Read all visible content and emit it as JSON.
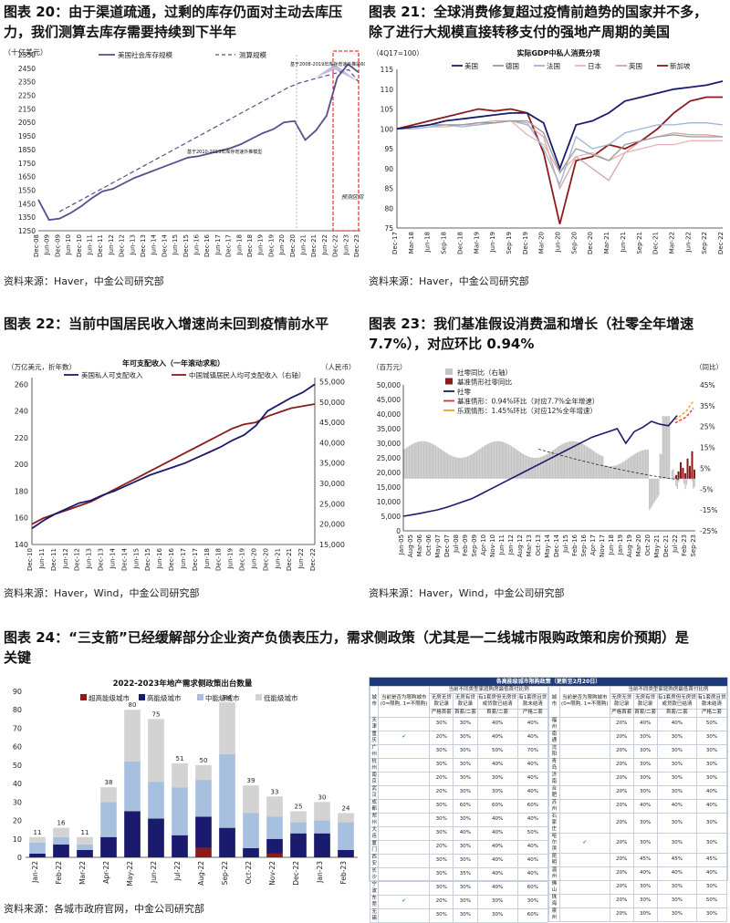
{
  "fig20": {
    "title_line1": "图表 20：由于渠道疏通，过剩的库存仍面对主动去库压",
    "title_line2": "力，我们测算去库存需要持续到下半年",
    "source": "资料来源：Haver，中金公司研究部",
    "chart_data": {
      "type": "line",
      "unit_label": "（十亿美元）",
      "y_ticks": [
        1250,
        1350,
        1450,
        1550,
        1650,
        1750,
        1850,
        1950,
        2050,
        2150,
        2250,
        2350,
        2450,
        2550
      ],
      "ylim": [
        1250,
        2550
      ],
      "x_ticks": [
        "Dec-08",
        "Jun-09",
        "Dec-09",
        "Jun-10",
        "Dec-10",
        "Jun-11",
        "Dec-11",
        "Jun-12",
        "Dec-12",
        "Jun-13",
        "Dec-13",
        "Jun-14",
        "Dec-14",
        "Jun-15",
        "Dec-15",
        "Jun-16",
        "Dec-16",
        "Jun-17",
        "Dec-17",
        "Jun-18",
        "Dec-18",
        "Jun-19",
        "Dec-19",
        "Jun-20",
        "Dec-20",
        "Jun-21",
        "Dec-21",
        "Jun-22",
        "Dec-22",
        "Jun-23",
        "Dec-23"
      ],
      "series": [
        {
          "name": "美国社会库存规模",
          "values": [
            1480,
            1330,
            1340,
            1380,
            1430,
            1490,
            1540,
            1560,
            1600,
            1640,
            1670,
            1700,
            1730,
            1760,
            1790,
            1800,
            1820,
            1840,
            1860,
            1890,
            1930,
            1970,
            2000,
            2050,
            2060,
            1920,
            1990,
            2100,
            2380,
            2480,
            2420
          ]
        },
        {
          "name": "测算规模",
          "values": [
            1390,
            1430,
            1470,
            1510,
            1550,
            1590,
            1630,
            1670,
            1710,
            1750,
            1790,
            1830,
            1870,
            1910,
            1950,
            1990,
            2030,
            2070,
            2110,
            2150,
            2190,
            2230,
            2270,
            2310,
            2340,
            2360,
            2380,
            2400,
            2420,
            2440,
            2350
          ]
        }
      ],
      "annotations": [
        "基于2008-2019年库存增速外推的60%库存增长",
        "基于2010-2019年库存增速外推模型",
        "预测区间"
      ]
    }
  },
  "fig21": {
    "title_line1": "图表 21：全球消费修复超过疫情前趋势的国家并不多，",
    "title_line2": "除了进行大规模直接转移支付的强地产周期的美国",
    "source": "资料来源：Haver，中金公司研究部",
    "chart_data": {
      "type": "line",
      "title": "实际GDP中私人消费分项",
      "unit_label": "（4Q17=100）",
      "y_ticks": [
        75,
        80,
        85,
        90,
        95,
        100,
        105,
        110,
        115
      ],
      "ylim": [
        75,
        115
      ],
      "x_ticks": [
        "Dec-17",
        "Mar-18",
        "Jun-18",
        "Sep-18",
        "Dec-18",
        "Mar-19",
        "Jun-19",
        "Sep-19",
        "Dec-19",
        "Mar-20",
        "Jun-20",
        "Sep-20",
        "Dec-20",
        "Mar-21",
        "Jun-21",
        "Sep-21",
        "Dec-21",
        "Mar-22",
        "Jun-22",
        "Sep-22",
        "Dec-22"
      ],
      "series": [
        {
          "name": "美国",
          "color": "#1a1a6e",
          "values": [
            100,
            100.5,
            101,
            102,
            102.5,
            103,
            103.5,
            104,
            104,
            101.5,
            90,
            101,
            102,
            104,
            107,
            108,
            109,
            110,
            110.5,
            111,
            112
          ]
        },
        {
          "name": "德国",
          "color": "#9a9a9a",
          "values": [
            100,
            100.5,
            101,
            101,
            101,
            101.5,
            101.5,
            102,
            102,
            99,
            89,
            95,
            93.5,
            92,
            96,
            97,
            98,
            98.5,
            98,
            98,
            98
          ]
        },
        {
          "name": "法国",
          "color": "#9db4d8",
          "values": [
            100,
            100,
            100.5,
            101,
            100.5,
            101,
            101.5,
            102,
            101.5,
            95,
            86,
            98,
            95,
            96,
            99,
            100,
            101,
            101,
            101.5,
            101.5,
            101
          ]
        },
        {
          "name": "日本",
          "color": "#e8b4b8",
          "values": [
            100,
            100,
            100.5,
            100.5,
            101,
            101,
            101.5,
            102,
            98.5,
            96,
            89,
            93,
            94,
            92,
            94,
            95,
            96,
            96,
            97,
            97,
            97
          ]
        },
        {
          "name": "英国",
          "color": "#d4a5a5",
          "values": [
            100,
            100.5,
            101,
            101,
            101,
            101.5,
            102,
            102,
            101,
            98,
            85,
            93,
            90,
            87,
            94,
            97,
            98,
            99,
            98.5,
            98.5,
            98
          ]
        },
        {
          "name": "新加坡",
          "color": "#8b1a1a",
          "values": [
            100,
            101,
            102,
            103,
            104,
            105,
            104.5,
            105,
            104,
            94,
            76,
            92,
            93,
            96,
            95,
            97,
            100,
            104,
            107,
            108,
            108
          ]
        }
      ]
    }
  },
  "fig22": {
    "title": "图表 22：当前中国居民收入增速尚未回到疫情前水平",
    "source": "资料来源：Haver，Wind，中金公司研究部",
    "chart_data": {
      "type": "line",
      "title": "年可支配收入（一年滚动求和）",
      "left_unit_label": "（万亿美元，折年数）",
      "right_unit_label": "（人民币）",
      "y_ticks": [
        140,
        160,
        180,
        200,
        220,
        240,
        260
      ],
      "ylim": [
        140,
        265
      ],
      "y2_ticks": [
        15000,
        20000,
        25000,
        30000,
        35000,
        40000,
        45000,
        50000,
        55000
      ],
      "y2lim": [
        15000,
        56000
      ],
      "x_ticks": [
        "Dec-10",
        "Jun-11",
        "Dec-11",
        "Jun-12",
        "Dec-12",
        "Jun-13",
        "Dec-13",
        "Jun-14",
        "Dec-14",
        "Jun-15",
        "Dec-15",
        "Jun-16",
        "Dec-16",
        "Jun-17",
        "Dec-17",
        "Jun-18",
        "Dec-18",
        "Jun-19",
        "Dec-19",
        "Jun-20",
        "Dec-20",
        "Jun-21",
        "Dec-21",
        "Jun-22",
        "Dec-22"
      ],
      "series": [
        {
          "name": "美国私人可支配收入",
          "color": "#1a1a6e",
          "values": [
            152,
            158,
            163,
            167,
            171,
            173,
            177,
            180,
            184,
            188,
            192,
            195,
            198,
            201,
            205,
            209,
            213,
            218,
            222,
            229,
            240,
            245,
            250,
            254,
            260
          ]
        },
        {
          "name": "中国城镇居民人均可支配收入（右轴）",
          "color": "#8b1a1a",
          "values": [
            20000,
            21500,
            22500,
            23500,
            24500,
            25500,
            27000,
            28500,
            30000,
            31500,
            33000,
            34500,
            36000,
            37500,
            39000,
            40500,
            42000,
            43500,
            44500,
            45000,
            46500,
            47500,
            48500,
            49000,
            49500
          ]
        }
      ]
    }
  },
  "fig23": {
    "title_line1": "图表 23：我们基准假设消费温和增长（社零全年增速",
    "title_line2": "7.7%），对应环比 0.94%",
    "source": "资料来源：Haver，Wind，中金公司研究部",
    "chart_data": {
      "type": "line",
      "left_unit_label": "（百万元）",
      "right_unit_label": "（同比）",
      "y_ticks": [
        0,
        5000,
        10000,
        15000,
        20000,
        25000,
        30000,
        35000,
        40000,
        45000,
        50000
      ],
      "ylim": [
        0,
        50000
      ],
      "y2_ticks": [
        "-25%",
        "-15%",
        "-5%",
        "5%",
        "15%",
        "25%",
        "35%",
        "45%"
      ],
      "x_ticks": [
        "Jan-05",
        "Aug-05",
        "Mar-06",
        "Oct-06",
        "May-07",
        "Dec-07",
        "Jul-08",
        "Feb-09",
        "Sep-09",
        "Apr-10",
        "Nov-10",
        "Jun-11",
        "Jan-12",
        "Aug-12",
        "Mar-13",
        "Oct-13",
        "May-14",
        "Dec-14",
        "Jul-15",
        "Feb-16",
        "Sep-16",
        "Apr-17",
        "Nov-17",
        "Jun-18",
        "Jan-19",
        "Aug-19",
        "Mar-20",
        "Oct-20",
        "May-21",
        "Dec-21",
        "Jul-22",
        "Feb-23",
        "Sep-23"
      ],
      "legend": [
        "社零同比（右轴）",
        "基准情形社零同比",
        "社零",
        "基准情形：0.94%环比（对应7.7%全年增速）",
        "乐观情形：1.45%环比（对应12%全年增速）"
      ],
      "series": [
        {
          "name": "社零",
          "values": [
            5000,
            5500,
            6000,
            6600,
            7200,
            8000,
            9000,
            10000,
            11000,
            12500,
            14000,
            15500,
            17000,
            18500,
            20000,
            21500,
            23000,
            24500,
            26000,
            27500,
            29000,
            30500,
            32000,
            33000,
            34000,
            35000,
            30000,
            34000,
            35500,
            37500,
            36500,
            36000,
            39500
          ]
        }
      ]
    }
  },
  "fig24": {
    "title_line1": "图表 24：“三支箭”已经缓解部分企业资产负债表压力，需求侧政策（尤其是一二线城市限购政策和房价预期）是",
    "title_line2": "关键",
    "source": "资料来源：各城市政府官网，中金公司研究部",
    "chart_data": {
      "type": "bar",
      "title": "2022-2023年地产需求侧政策出台数量",
      "y_ticks": [
        0,
        10,
        20,
        30,
        40,
        50,
        60,
        70,
        80,
        90
      ],
      "ylim": [
        0,
        90
      ],
      "categories": [
        "Jan-22",
        "Feb-22",
        "Mar-22",
        "Apr-22",
        "May-22",
        "Jun-22",
        "Jul-22",
        "Aug-22",
        "Sep-22",
        "Oct-22",
        "Nov-22",
        "Dec-22",
        "Jan-23",
        "Feb-23"
      ],
      "totals": [
        11,
        16,
        11,
        38,
        80,
        75,
        51,
        50,
        84,
        39,
        33,
        25,
        30,
        24
      ],
      "series": [
        {
          "name": "超高能级城市",
          "color": "#8b1a1a",
          "values": [
            0,
            0,
            0,
            0,
            0,
            0,
            0,
            5,
            0,
            0,
            2,
            0,
            0,
            0
          ]
        },
        {
          "name": "高能级城市",
          "color": "#1a1a6e",
          "values": [
            2,
            7,
            4,
            11,
            25,
            21,
            12,
            17,
            16,
            5,
            8,
            13,
            13,
            4
          ]
        },
        {
          "name": "中能级城市",
          "color": "#a8c0e0",
          "values": [
            6,
            4,
            3,
            19,
            27,
            20,
            26,
            20,
            40,
            19,
            12,
            6,
            7,
            15
          ]
        },
        {
          "name": "低能级城市",
          "color": "#d3d3d3",
          "values": [
            3,
            5,
            4,
            8,
            28,
            34,
            13,
            8,
            28,
            15,
            11,
            6,
            10,
            5
          ]
        }
      ]
    },
    "table": {
      "title": "各高能级城市限购政策（更新至2月20日）",
      "header_group": "当前不同类型家庭购房最低首付比例",
      "col_city": "城市",
      "col_restrict": "当前是否为限购城市(0=限购, 1=不限购)",
      "col_none": "无房无贷款记录",
      "col_house_nil": "无房有贷款记录",
      "col_one_settled": "有1套房但无房贷或贷款已结清",
      "col_one_unsettled": "有1套房且贷款未结清",
      "sub_strict": "严格首套",
      "sub_first2": "首套/二套",
      "sub_second": "首套/二套",
      "sub_second2": "严格二套",
      "left_rows": [
        [
          "天津",
          "",
          "30%",
          "30%",
          "40%",
          "40%"
        ],
        [
          "重庆",
          "✔",
          "20%",
          "30%",
          "40%",
          "40%"
        ],
        [
          "广州",
          "",
          "30%",
          "30%",
          "50%",
          "70%"
        ],
        [
          "杭州",
          "",
          "30%",
          "30%",
          "40%",
          "40%"
        ],
        [
          "南京",
          "",
          "20%",
          "30%",
          "30%",
          "40%"
        ],
        [
          "武汉",
          "",
          "20%",
          "30%",
          "30%",
          "40%"
        ],
        [
          "成都",
          "",
          "30%",
          "60%",
          "60%",
          "60%"
        ],
        [
          "郑州",
          "",
          "30%",
          "30%",
          "40%",
          "40%"
        ],
        [
          "大连",
          "",
          "30%",
          "40%",
          "40%",
          "50%"
        ],
        [
          "厦门",
          "",
          "20%",
          "30%",
          "40%",
          "40%"
        ],
        [
          "西安",
          "",
          "30%",
          "30%",
          "40%",
          "40%"
        ],
        [
          "长沙",
          "",
          "30%",
          "35%",
          "40%",
          "40%"
        ],
        [
          "宁波",
          "",
          "30%",
          "30%",
          "40%",
          "60%"
        ],
        [
          "东莞",
          "✔",
          "20%",
          "30%",
          "30%",
          "30%"
        ],
        [
          "无锡",
          "",
          "30%",
          "30%",
          "30%",
          "60%"
        ]
      ],
      "right_rows": [
        [
          "福州",
          "",
          "20%",
          "40%",
          "40%",
          "50%"
        ],
        [
          "南通",
          "",
          "20%",
          "30%",
          "30%",
          "30%"
        ],
        [
          "沈阳",
          "",
          "20%",
          "30%",
          "30%",
          "30%"
        ],
        [
          "青岛",
          "",
          "20%",
          "30%",
          "30%",
          "30%"
        ],
        [
          "济南",
          "",
          "20%",
          "30%",
          "30%",
          "30%"
        ],
        [
          "合肥",
          "",
          "20%",
          "30%",
          "30%",
          "40%"
        ],
        [
          "苏州",
          "",
          "20%",
          "40%",
          "40%",
          "40%"
        ],
        [
          "石家庄",
          "",
          "20%",
          "30%",
          "30%",
          "30%"
        ],
        [
          "哈尔滨",
          "✔",
          "20%",
          "30%",
          "30%",
          "30%"
        ],
        [
          "昆明",
          "",
          "20%",
          "45%",
          "45%",
          "45%"
        ],
        [
          "温州",
          "",
          "20%",
          "40%",
          "40%",
          "40%"
        ],
        [
          "佛山",
          "",
          "20%",
          "30%",
          "30%",
          "30%"
        ],
        [
          "珠海",
          "",
          "20%",
          "30%",
          "30%",
          "50%"
        ],
        [
          "泉州",
          "",
          "20%",
          "30%",
          "30%",
          "30%"
        ]
      ]
    }
  }
}
